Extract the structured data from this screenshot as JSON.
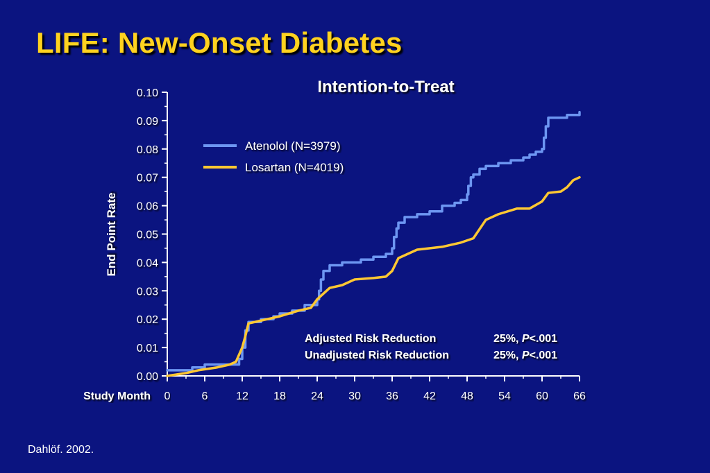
{
  "slide": {
    "title": "LIFE: New-Onset Diabetes",
    "footnote": "Dahlöf. 2002."
  },
  "colors": {
    "background": "#0b1480",
    "title": "#ffd21f",
    "text": "#ffffff",
    "atenolol": "#6d96f2",
    "losartan": "#ffc832"
  },
  "chart_data": {
    "type": "line",
    "title": "Intention-to-Treat",
    "xlabel": "Study Month",
    "ylabel": "End Point Rate",
    "xlim": [
      0,
      66
    ],
    "ylim": [
      0,
      0.1
    ],
    "x_ticks": [
      "0",
      "6",
      "12",
      "18",
      "24",
      "30",
      "36",
      "42",
      "48",
      "54",
      "60",
      "66"
    ],
    "y_ticks": [
      "0.00",
      "0.01",
      "0.02",
      "0.03",
      "0.04",
      "0.05",
      "0.06",
      "0.07",
      "0.08",
      "0.09",
      "0.10"
    ],
    "grid": false,
    "legend_position": "top-left",
    "series": [
      {
        "name": "Atenolol (N=3979)",
        "color": "#6d96f2",
        "step": true,
        "x": [
          0,
          2,
          4,
          6,
          8,
          10,
          11,
          11.5,
          12,
          12.5,
          13,
          15,
          17,
          18,
          20,
          22,
          23,
          24,
          24.3,
          24.6,
          25,
          26,
          28,
          31,
          33,
          35,
          36,
          36.3,
          36.7,
          37,
          38,
          40,
          42,
          44,
          46,
          47,
          48,
          48.2,
          48.6,
          49,
          50,
          51,
          53,
          55,
          57,
          58,
          59,
          60,
          60.3,
          60.6,
          61,
          62,
          63,
          64,
          65,
          66
        ],
        "y": [
          0.002,
          0.002,
          0.003,
          0.004,
          0.004,
          0.004,
          0.004,
          0.006,
          0.01,
          0.016,
          0.019,
          0.02,
          0.021,
          0.022,
          0.023,
          0.025,
          0.025,
          0.027,
          0.03,
          0.034,
          0.037,
          0.039,
          0.04,
          0.041,
          0.042,
          0.043,
          0.045,
          0.049,
          0.052,
          0.054,
          0.056,
          0.057,
          0.058,
          0.06,
          0.061,
          0.062,
          0.064,
          0.067,
          0.07,
          0.071,
          0.073,
          0.074,
          0.075,
          0.076,
          0.077,
          0.078,
          0.079,
          0.08,
          0.084,
          0.088,
          0.091,
          0.091,
          0.091,
          0.092,
          0.092,
          0.093
        ]
      },
      {
        "name": "Losartan (N=4019)",
        "color": "#ffc832",
        "step": false,
        "x": [
          0,
          3,
          5,
          8,
          10,
          11,
          12,
          12.5,
          13,
          15,
          18,
          21,
          23,
          24,
          26,
          28,
          30,
          33,
          35,
          36,
          37,
          40,
          44,
          47,
          49,
          51,
          53,
          56,
          58,
          60,
          61,
          63,
          64,
          65,
          66
        ],
        "y": [
          0,
          0.001,
          0.002,
          0.003,
          0.004,
          0.005,
          0.01,
          0.014,
          0.0185,
          0.0195,
          0.021,
          0.023,
          0.024,
          0.027,
          0.031,
          0.032,
          0.034,
          0.0345,
          0.035,
          0.037,
          0.0415,
          0.0445,
          0.0455,
          0.047,
          0.0485,
          0.055,
          0.057,
          0.059,
          0.059,
          0.0615,
          0.0645,
          0.065,
          0.0665,
          0.069,
          0.07
        ]
      }
    ],
    "annotations": {
      "rows": [
        {
          "label": "Adjusted Risk Reduction",
          "pct": "25%,",
          "p_symbol": "P",
          "p_value": "<.001"
        },
        {
          "label": "Unadjusted Risk Reduction",
          "pct": "25%,",
          "p_symbol": "P",
          "p_value": "<.001"
        }
      ]
    }
  }
}
